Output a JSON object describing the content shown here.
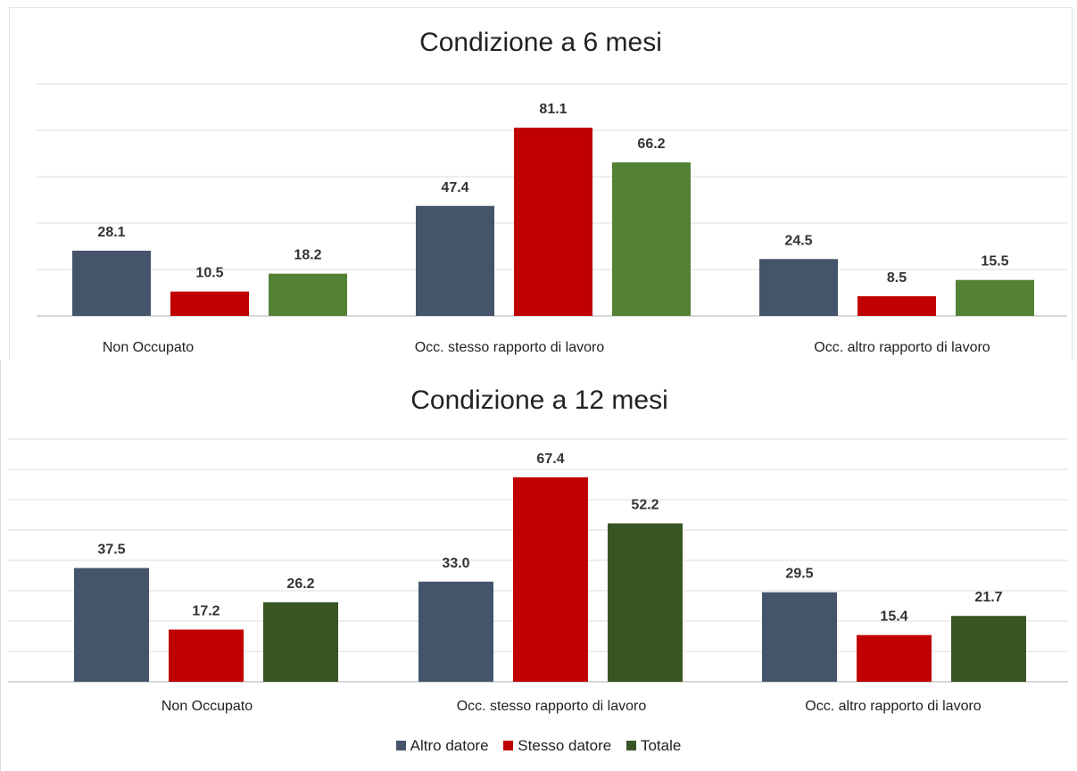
{
  "chart_data": [
    {
      "type": "bar",
      "title": "Condizione a 6 mesi",
      "categories": [
        "Non Occupato",
        "Occ. stesso rapporto di lavoro",
        "Occ. altro rapporto di lavoro"
      ],
      "series": [
        {
          "name": "Altro datore",
          "values": [
            28.1,
            47.4,
            24.5
          ],
          "color": "#44546a"
        },
        {
          "name": "Stesso datore",
          "values": [
            10.5,
            81.1,
            8.5
          ],
          "color": "#c00000"
        },
        {
          "name": "Totale",
          "values": [
            18.2,
            66.2,
            15.5
          ],
          "color": "#548235"
        }
      ],
      "ylim": [
        0,
        100
      ],
      "grid": true
    },
    {
      "type": "bar",
      "title": "Condizione a 12 mesi",
      "categories": [
        "Non Occupato",
        "Occ. stesso rapporto di lavoro",
        "Occ. altro rapporto di lavoro"
      ],
      "series": [
        {
          "name": "Altro datore",
          "values": [
            37.5,
            33.0,
            29.5
          ],
          "color": "#44546a"
        },
        {
          "name": "Stesso datore",
          "values": [
            17.2,
            67.4,
            15.4
          ],
          "color": "#c00000"
        },
        {
          "name": "Totale",
          "values": [
            26.2,
            52.2,
            21.7
          ],
          "color": "#375623"
        }
      ],
      "ylim": [
        0,
        80
      ],
      "grid": true
    }
  ],
  "legend": [
    {
      "label": "Altro datore",
      "color": "#44546a"
    },
    {
      "label": "Stesso datore",
      "color": "#c00000"
    },
    {
      "label": "Totale",
      "color": "#375623"
    }
  ]
}
